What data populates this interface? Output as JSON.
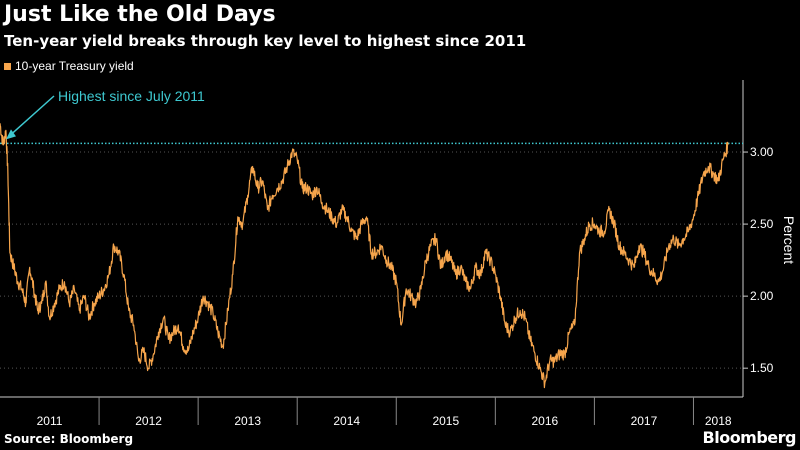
{
  "title": "Just Like the Old Days",
  "subtitle": "Ten-year yield breaks through key level to highest since 2011",
  "source": "Source: Bloomberg",
  "brand": "Bloomberg",
  "colors": {
    "series": "#f6a54c",
    "reference_line": "#3ec8d0",
    "annotation": "#3ec8d0",
    "gridline": "#555555",
    "background": "#000000",
    "text": "#ffffff"
  },
  "chart_data": {
    "type": "line",
    "legend": [
      "10-year Treasury yield"
    ],
    "legend_position": "top-left",
    "ylabel": "Percent",
    "y_axis_side": "right",
    "ylim": [
      1.3,
      3.5
    ],
    "yticks": [
      1.5,
      2.0,
      2.5,
      3.0
    ],
    "ytick_labels": [
      "1.50",
      "2.00",
      "2.50",
      "3.00"
    ],
    "xlim": [
      2011.0,
      2018.5
    ],
    "x_tick_labels": [
      "2011",
      "2012",
      "2013",
      "2014",
      "2015",
      "2016",
      "2017",
      "2018"
    ],
    "grid": "horizontal dashed",
    "reference_line": {
      "y": 3.06,
      "style": "dotted"
    },
    "annotation": {
      "text": "Highest since July 2011",
      "x": 2011.02,
      "y": 3.06
    },
    "series": [
      {
        "name": "10-year Treasury yield",
        "x": [
          2011.0,
          2011.03,
          2011.06,
          2011.08,
          2011.1,
          2011.14,
          2011.18,
          2011.22,
          2011.26,
          2011.3,
          2011.34,
          2011.38,
          2011.42,
          2011.46,
          2011.5,
          2011.55,
          2011.6,
          2011.65,
          2011.7,
          2011.75,
          2011.8,
          2011.85,
          2011.9,
          2011.95,
          2012.0,
          2012.05,
          2012.1,
          2012.15,
          2012.2,
          2012.25,
          2012.3,
          2012.35,
          2012.4,
          2012.45,
          2012.5,
          2012.55,
          2012.6,
          2012.65,
          2012.7,
          2012.75,
          2012.8,
          2012.85,
          2012.9,
          2012.95,
          2013.0,
          2013.05,
          2013.1,
          2013.15,
          2013.2,
          2013.25,
          2013.3,
          2013.35,
          2013.4,
          2013.45,
          2013.5,
          2013.55,
          2013.6,
          2013.65,
          2013.7,
          2013.75,
          2013.8,
          2013.85,
          2013.9,
          2013.95,
          2014.0,
          2014.05,
          2014.1,
          2014.15,
          2014.2,
          2014.25,
          2014.3,
          2014.35,
          2014.4,
          2014.45,
          2014.5,
          2014.55,
          2014.6,
          2014.65,
          2014.7,
          2014.75,
          2014.8,
          2014.85,
          2014.9,
          2014.95,
          2015.0,
          2015.05,
          2015.1,
          2015.15,
          2015.2,
          2015.25,
          2015.3,
          2015.35,
          2015.4,
          2015.45,
          2015.5,
          2015.55,
          2015.6,
          2015.65,
          2015.7,
          2015.75,
          2015.8,
          2015.85,
          2015.9,
          2015.95,
          2016.0,
          2016.05,
          2016.1,
          2016.15,
          2016.2,
          2016.25,
          2016.3,
          2016.35,
          2016.4,
          2016.45,
          2016.5,
          2016.55,
          2016.6,
          2016.65,
          2016.7,
          2016.75,
          2016.8,
          2016.85,
          2016.9,
          2016.95,
          2017.0,
          2017.05,
          2017.1,
          2017.15,
          2017.2,
          2017.25,
          2017.3,
          2017.35,
          2017.4,
          2017.45,
          2017.5,
          2017.55,
          2017.6,
          2017.65,
          2017.7,
          2017.75,
          2017.8,
          2017.85,
          2017.9,
          2017.95,
          2018.0,
          2018.05,
          2018.1,
          2018.15,
          2018.2,
          2018.25,
          2018.3,
          2018.35
        ],
        "values": [
          3.2,
          3.05,
          3.15,
          2.85,
          2.3,
          2.2,
          2.1,
          2.05,
          1.95,
          2.2,
          2.05,
          1.9,
          1.95,
          2.1,
          1.85,
          1.95,
          2.05,
          2.1,
          1.95,
          2.05,
          1.9,
          2.0,
          1.85,
          1.95,
          2.0,
          2.05,
          2.15,
          2.35,
          2.3,
          2.15,
          1.9,
          1.8,
          1.55,
          1.62,
          1.5,
          1.6,
          1.75,
          1.85,
          1.7,
          1.75,
          1.8,
          1.65,
          1.62,
          1.75,
          1.85,
          2.0,
          1.95,
          1.88,
          1.75,
          1.65,
          1.9,
          2.15,
          2.55,
          2.5,
          2.7,
          2.9,
          2.75,
          2.8,
          2.6,
          2.7,
          2.75,
          2.8,
          2.9,
          3.0,
          2.95,
          2.75,
          2.75,
          2.7,
          2.75,
          2.65,
          2.6,
          2.55,
          2.5,
          2.6,
          2.55,
          2.45,
          2.4,
          2.5,
          2.55,
          2.3,
          2.3,
          2.35,
          2.25,
          2.2,
          2.1,
          1.8,
          2.05,
          2.0,
          1.95,
          2.05,
          2.25,
          2.35,
          2.4,
          2.2,
          2.3,
          2.25,
          2.15,
          2.2,
          2.1,
          2.05,
          2.2,
          2.15,
          2.3,
          2.25,
          2.15,
          2.0,
          1.8,
          1.75,
          1.85,
          1.9,
          1.85,
          1.7,
          1.6,
          1.5,
          1.4,
          1.55,
          1.55,
          1.6,
          1.6,
          1.75,
          1.8,
          2.3,
          2.4,
          2.5,
          2.5,
          2.45,
          2.45,
          2.6,
          2.5,
          2.35,
          2.3,
          2.25,
          2.2,
          2.35,
          2.3,
          2.2,
          2.15,
          2.1,
          2.2,
          2.35,
          2.4,
          2.35,
          2.4,
          2.45,
          2.55,
          2.7,
          2.85,
          2.9,
          2.85,
          2.8,
          2.95,
          3.05
        ]
      }
    ]
  }
}
